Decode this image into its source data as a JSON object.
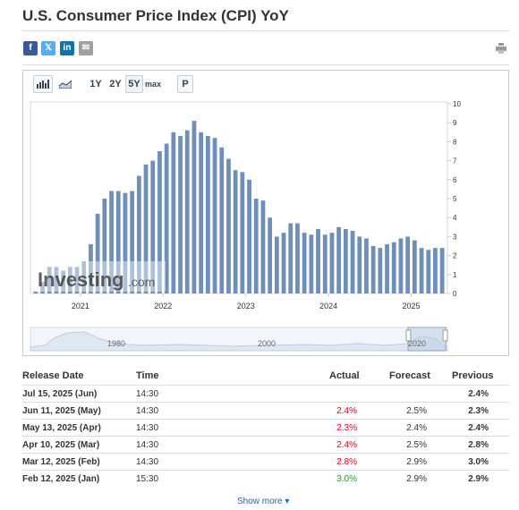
{
  "page": {
    "title": "U.S. Consumer Price Index (CPI) YoY"
  },
  "share": {
    "facebook": "f",
    "twitter": "𝕏",
    "linkedin": "in",
    "email": "✉"
  },
  "toolbar": {
    "range_1y": "1Y",
    "range_2y": "2Y",
    "range_5y": "5Y",
    "range_max": "max",
    "p_button": "P"
  },
  "watermark": {
    "brand": "Investing",
    "suffix": ".com"
  },
  "navigator": {
    "labels": [
      "1980",
      "2000",
      "2020"
    ]
  },
  "chart_data": {
    "type": "bar",
    "title": "",
    "xlabel": "",
    "ylabel": "",
    "ylim": [
      0,
      10
    ],
    "yticks": [
      "0",
      "1",
      "2",
      "3",
      "4",
      "5",
      "6",
      "7",
      "8",
      "9",
      "10"
    ],
    "x_tick_labels": [
      "2021",
      "2022",
      "2023",
      "2024",
      "2025"
    ],
    "grid": false,
    "bar_color": "#6d8fb9",
    "values": [
      0.1,
      0.6,
      1.4,
      1.4,
      1.2,
      1.4,
      1.4,
      1.7,
      2.6,
      4.2,
      5.0,
      5.4,
      5.4,
      5.3,
      5.4,
      6.2,
      6.8,
      7.0,
      7.5,
      7.9,
      8.5,
      8.3,
      8.6,
      9.1,
      8.5,
      8.3,
      8.2,
      7.7,
      7.1,
      6.5,
      6.4,
      6.0,
      5.0,
      4.9,
      4.0,
      3.0,
      3.2,
      3.7,
      3.7,
      3.2,
      3.1,
      3.4,
      3.1,
      3.2,
      3.5,
      3.4,
      3.3,
      3.0,
      2.9,
      2.5,
      2.4,
      2.6,
      2.7,
      2.9,
      3.0,
      2.8,
      2.4,
      2.3,
      2.4,
      2.4
    ]
  },
  "table": {
    "headers": {
      "release_date": "Release Date",
      "time": "Time",
      "actual": "Actual",
      "forecast": "Forecast",
      "previous": "Previous"
    },
    "rows": [
      {
        "date": "Jul 15, 2025 (Jun)",
        "time": "14:30",
        "actual": "",
        "forecast": "",
        "previous": "2.4%"
      },
      {
        "date": "Jun 11, 2025 (May)",
        "time": "14:30",
        "actual": "2.4%",
        "forecast": "2.5%",
        "previous": "2.3%"
      },
      {
        "date": "May 13, 2025 (Apr)",
        "time": "14:30",
        "actual": "2.3%",
        "forecast": "2.4%",
        "previous": "2.4%"
      },
      {
        "date": "Apr 10, 2025 (Mar)",
        "time": "14:30",
        "actual": "2.4%",
        "forecast": "2.5%",
        "previous": "2.8%"
      },
      {
        "date": "Mar 12, 2025 (Feb)",
        "time": "14:30",
        "actual": "2.8%",
        "forecast": "2.9%",
        "previous": "3.0%"
      },
      {
        "date": "Feb 12, 2025 (Jan)",
        "time": "15:30",
        "actual": "3.0%",
        "forecast": "2.9%",
        "previous": "2.9%"
      }
    ],
    "show_more": "Show more ▾"
  },
  "colors": {
    "negative": "#e0001b",
    "positive": "#1a9e1a",
    "link": "#2a64a7",
    "bar": "#6d8fb9"
  }
}
